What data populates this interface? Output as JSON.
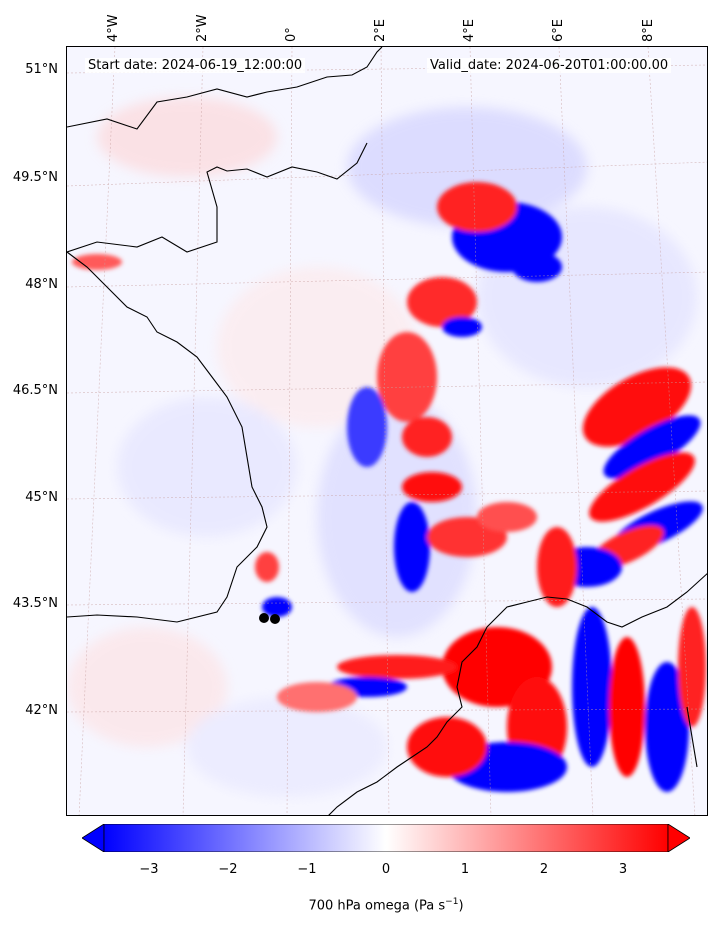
{
  "map": {
    "start_date": "Start date: 2024-06-19_12:00:00",
    "valid_date": "Valid_date: 2024-06-20T01:00:00.00",
    "lat_ticks": [
      "51°N",
      "49.5°N",
      "48°N",
      "46.5°N",
      "45°N",
      "43.5°N",
      "42°N"
    ],
    "lon_ticks": [
      "4°W",
      "2°W",
      "0°",
      "2°E",
      "4°E",
      "6°E",
      "8°E"
    ],
    "field": "700 hPa omega",
    "colors": {
      "negative": "#0000ff",
      "zero": "#ffffff",
      "positive": "#ff0000",
      "coastline": "#000000"
    }
  },
  "colorbar": {
    "ticks": [
      "−3",
      "−2",
      "−1",
      "0",
      "1",
      "2",
      "3"
    ],
    "label_main": "700 hPa omega (Pa s",
    "label_exp": "−1",
    "label_end": ")",
    "range": [
      -3.5,
      3.5
    ],
    "extend": "both"
  },
  "markers": {
    "count": 2,
    "color": "#000000"
  }
}
